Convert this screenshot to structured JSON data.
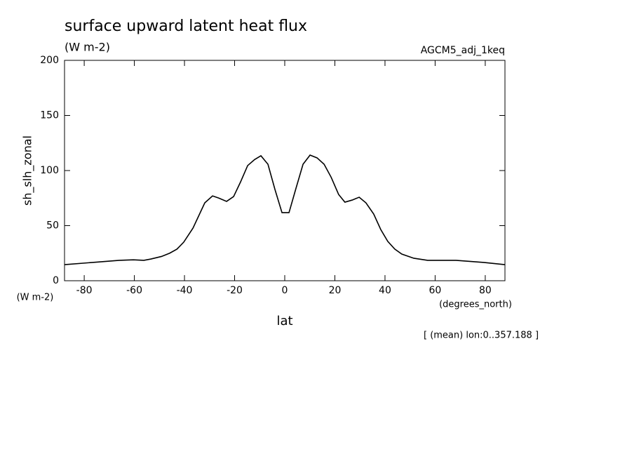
{
  "chart_data": {
    "type": "line",
    "title": "surface upward latent heat flux",
    "subtitle": "(W m-2)",
    "dataset": "AGCM5_adj_1keq",
    "y_label": "sh_slh_zonal",
    "y_units": "(W m-2)",
    "x_label": "lat",
    "x_units": "(degrees_north)",
    "annotation": "[ (mean) lon:0..357.188 ]",
    "xlim": [
      -87.86,
      87.86
    ],
    "ylim": [
      0,
      200
    ],
    "xticks": [
      -80,
      -60,
      -40,
      -20,
      0,
      20,
      40,
      60,
      80
    ],
    "yticks": [
      0,
      50,
      100,
      150,
      200
    ],
    "series": [
      {
        "color": "#000000",
        "x": [
          -87.8,
          -80,
          -74.4,
          -66,
          -60.4,
          -56.2,
          -53.4,
          -49.2,
          -45.9,
          -43,
          -40.3,
          -36.6,
          -31.9,
          -28.8,
          -26.3,
          -23.2,
          -20.4,
          -17.6,
          -14.8,
          -12,
          -9.5,
          -6.7,
          -3.9,
          -1.1,
          1.7,
          4.5,
          7.3,
          10.1,
          12.9,
          15.7,
          18.5,
          21.5,
          24,
          26.9,
          29.7,
          32.4,
          35.5,
          38.3,
          41.1,
          43.9,
          46.7,
          51.5,
          57,
          68.3,
          79.4,
          87.8
        ],
        "values": [
          14.6,
          16,
          17,
          18.5,
          19,
          18.5,
          19.7,
          22,
          25,
          28.7,
          35,
          47.8,
          70.7,
          77,
          75,
          72,
          76.4,
          89.8,
          104.5,
          110,
          113.4,
          105.7,
          82.8,
          61.8,
          61.8,
          84,
          105.7,
          114,
          111.5,
          105.7,
          94,
          78.3,
          71.3,
          73.2,
          75.8,
          70.7,
          60.5,
          46.5,
          35.7,
          28.7,
          24.2,
          20.4,
          18.5,
          18.5,
          16.6,
          14.6
        ]
      }
    ]
  }
}
